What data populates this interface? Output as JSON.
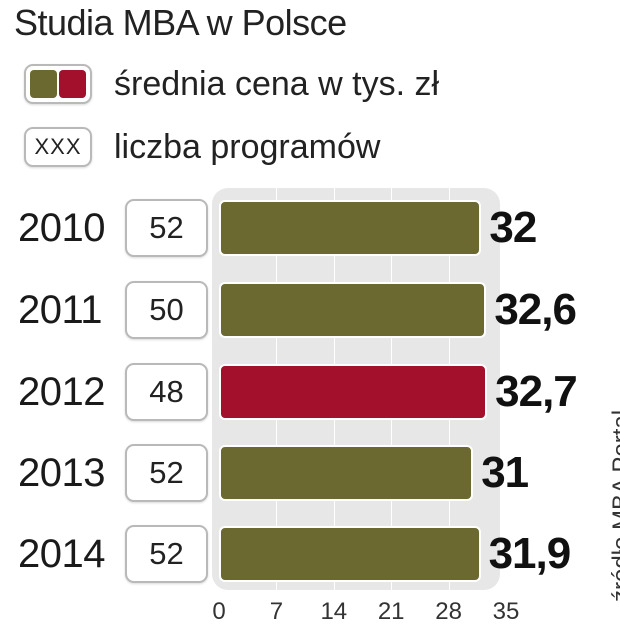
{
  "title": "Studia MBA w Polsce",
  "legend": {
    "price_label": "średnia cena w tys. zł",
    "count_label": "liczba programów",
    "count_box_text": "XXX",
    "colors": [
      "#6b6930",
      "#a3102c"
    ]
  },
  "source": "źródło MBA Portal",
  "chart_data": {
    "type": "bar",
    "orientation": "horizontal",
    "categories": [
      "2010",
      "2011",
      "2012",
      "2013",
      "2014"
    ],
    "values": [
      32,
      32.6,
      32.7,
      31,
      31.9
    ],
    "value_labels": [
      "32",
      "32,6",
      "32,7",
      "31",
      "31,9"
    ],
    "program_counts": [
      "52",
      "50",
      "48",
      "52",
      "52"
    ],
    "highlight_index": 2,
    "bar_color": "#6b6930",
    "highlight_color": "#a3102c",
    "xlim": [
      0,
      35
    ],
    "xticks": [
      "0",
      "7",
      "14",
      "21",
      "28",
      "35"
    ],
    "grid": true
  }
}
